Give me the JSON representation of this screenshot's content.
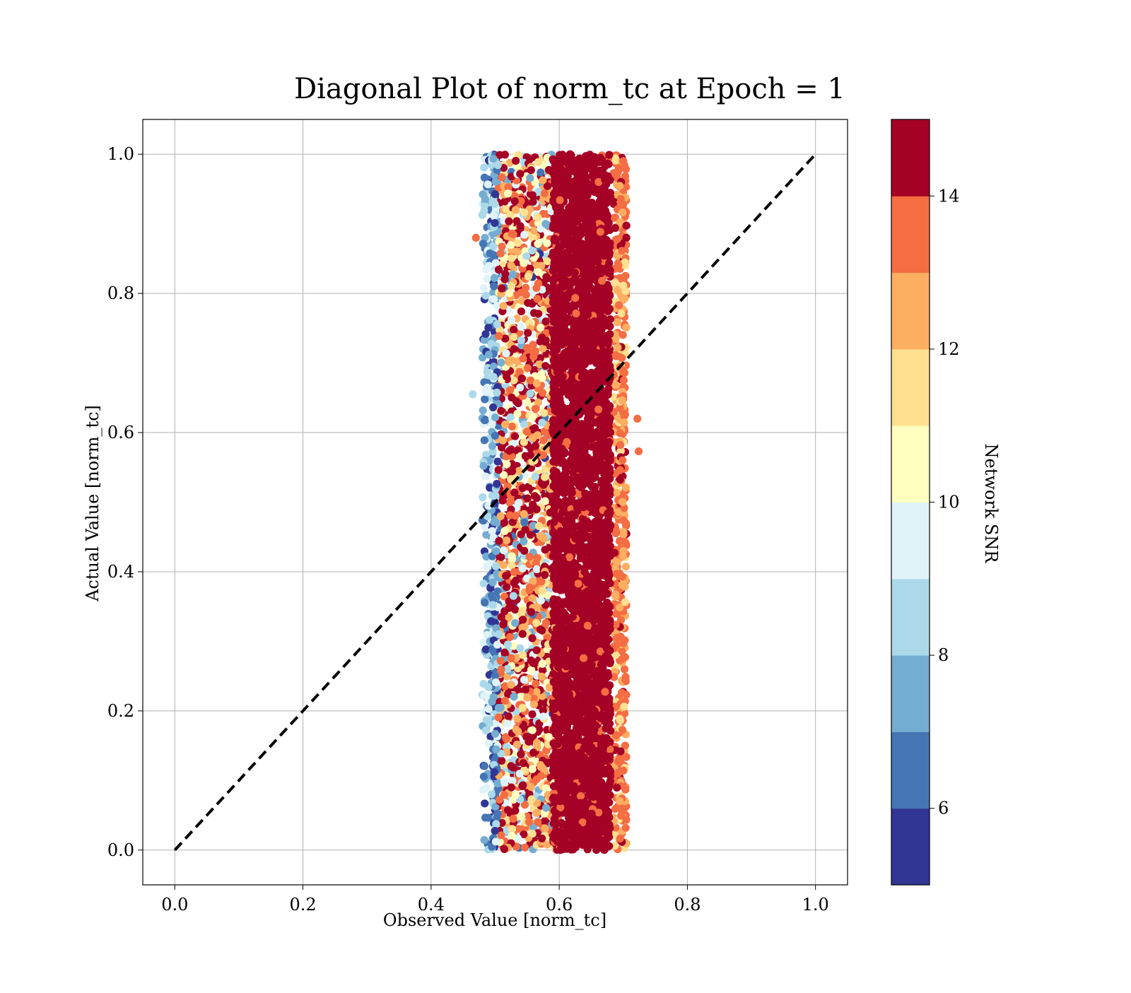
{
  "chart_data": {
    "type": "scatter",
    "title": "Diagonal Plot of norm_tc at Epoch = 1",
    "xlabel": "Observed Value [norm_tc]",
    "ylabel": "Actual Value [norm_tc]",
    "xlim": [
      -0.05,
      1.05
    ],
    "ylim": [
      -0.05,
      1.05
    ],
    "xticks": [
      "0.0",
      "0.2",
      "0.4",
      "0.6",
      "0.8",
      "1.0"
    ],
    "yticks": [
      "0.0",
      "0.2",
      "0.4",
      "0.6",
      "0.8",
      "1.0"
    ],
    "grid": true,
    "reference_line": {
      "style": "dashed",
      "color": "#000000",
      "from": [
        0,
        0
      ],
      "to": [
        1,
        1
      ]
    },
    "colorbar": {
      "label": "Network SNR",
      "range": [
        5,
        15
      ],
      "ticks": [
        "6",
        "8",
        "10",
        "12",
        "14"
      ],
      "colormap": "RdYlBu_r",
      "level_colors": [
        "#313695",
        "#4575b4",
        "#74add1",
        "#abd9e9",
        "#e0f3f8",
        "#ffffbf",
        "#fee090",
        "#fdae61",
        "#f46d43",
        "#a50026"
      ]
    },
    "scatter_distribution": {
      "observed_range": [
        0.47,
        0.72
      ],
      "actual_range": [
        0.0,
        1.0
      ],
      "high_snr_observed_range": [
        0.6,
        0.7
      ],
      "low_snr_observed_range": [
        0.48,
        0.6
      ],
      "outliers": [
        [
          0.465,
          0.655
        ],
        [
          0.722,
          0.62
        ],
        [
          0.724,
          0.573
        ],
        [
          0.47,
          0.88
        ]
      ]
    }
  }
}
